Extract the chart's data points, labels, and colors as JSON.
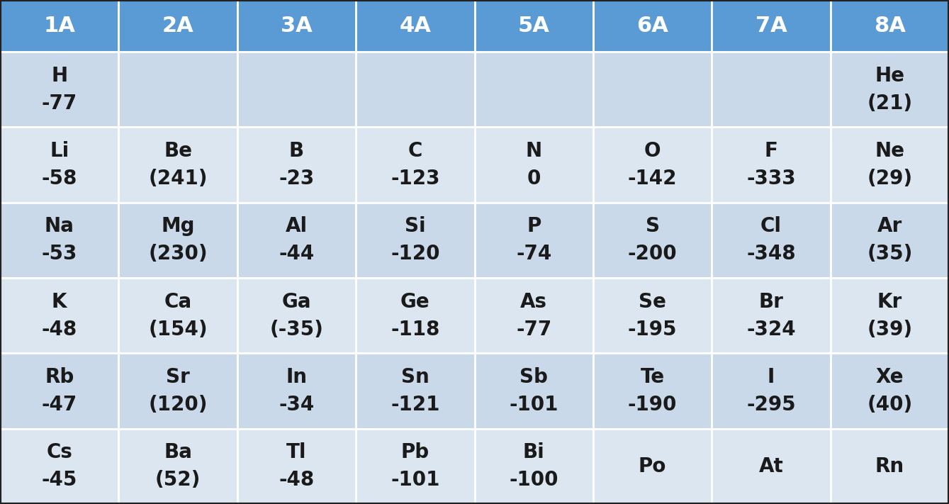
{
  "headers": [
    "1A",
    "2A",
    "3A",
    "4A",
    "5A",
    "6A",
    "7A",
    "8A"
  ],
  "rows": [
    [
      "H\n-77",
      "",
      "",
      "",
      "",
      "",
      "",
      "He\n(21)"
    ],
    [
      "Li\n-58",
      "Be\n(241)",
      "B\n-23",
      "C\n-123",
      "N\n0",
      "O\n-142",
      "F\n-333",
      "Ne\n(29)"
    ],
    [
      "Na\n-53",
      "Mg\n(230)",
      "Al\n-44",
      "Si\n-120",
      "P\n-74",
      "S\n-200",
      "Cl\n-348",
      "Ar\n(35)"
    ],
    [
      "K\n-48",
      "Ca\n(154)",
      "Ga\n(-35)",
      "Ge\n-118",
      "As\n-77",
      "Se\n-195",
      "Br\n-324",
      "Kr\n(39)"
    ],
    [
      "Rb\n-47",
      "Sr\n(120)",
      "In\n-34",
      "Sn\n-121",
      "Sb\n-101",
      "Te\n-190",
      "I\n-295",
      "Xe\n(40)"
    ],
    [
      "Cs\n-45",
      "Ba\n(52)",
      "Tl\n-48",
      "Pb\n-101",
      "Bi\n-100",
      "Po",
      "At",
      "Rn"
    ]
  ],
  "header_bg_color": "#5B9BD5",
  "header_text_color": "#ffffff",
  "row_bg_color_dark": "#c9d9ea",
  "row_bg_color_light": "#dce6f1",
  "cell_text_color": "#1a1a1a",
  "border_color": "#ffffff",
  "outer_border_color": "#222222",
  "header_fontsize": 22,
  "cell_fontsize": 20,
  "fig_bg_color": "#ffffff"
}
